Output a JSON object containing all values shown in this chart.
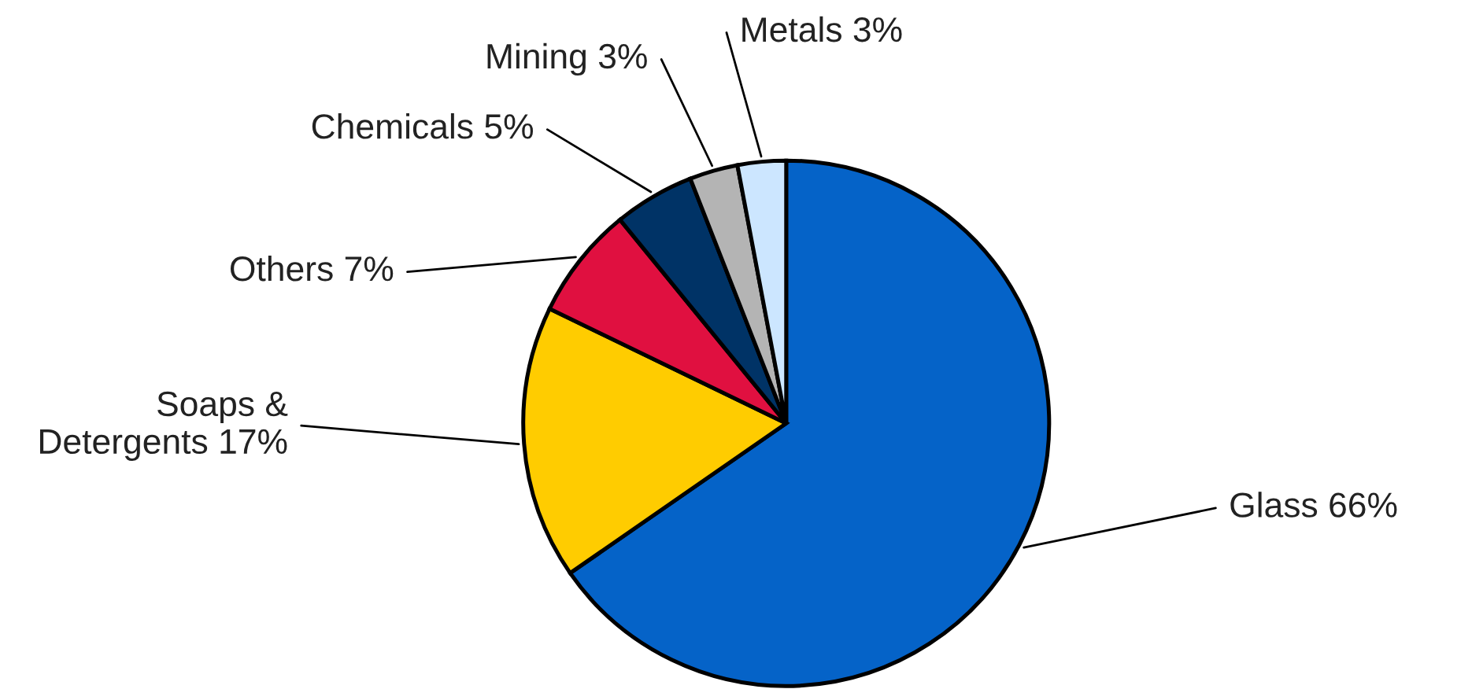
{
  "chart_data": {
    "type": "pie",
    "categories": [
      "Glass",
      "Soaps & Detergents",
      "Others",
      "Chemicals",
      "Mining",
      "Metals"
    ],
    "values": [
      66,
      17,
      7,
      5,
      3,
      3
    ],
    "value_labels": [
      "66%",
      "17%",
      "7%",
      "5%",
      "3%",
      "3%"
    ],
    "colors": [
      "#0563c8",
      "#ffcc00",
      "#e01040",
      "#003366",
      "#b4b4b4",
      "#cce6ff"
    ],
    "legend": false
  }
}
